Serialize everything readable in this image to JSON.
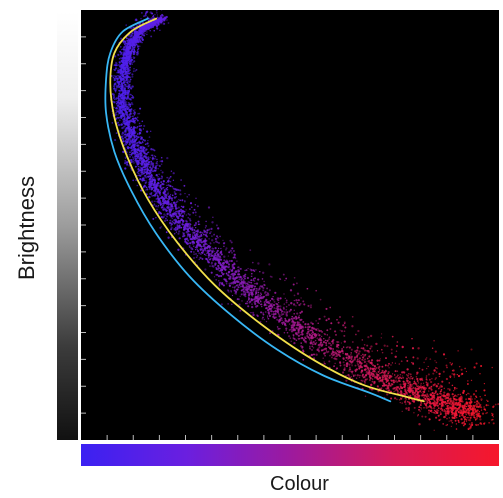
{
  "chart_data": {
    "type": "scatter",
    "title": "",
    "xlabel": "Colour",
    "ylabel": "Brightness",
    "xlim": [
      0,
      1
    ],
    "ylim": [
      0,
      1
    ],
    "grid": false,
    "legend": "none",
    "colormap_x": [
      "#3b21f2",
      "#6a1fe0",
      "#9d1a9e",
      "#d61a57",
      "#f6172b"
    ],
    "colormap_y": [
      "#ffffff",
      "#9c9c9c",
      "#111111"
    ],
    "point_cloud_ridge": [
      [
        0.2,
        0.98
      ],
      [
        0.15,
        0.96
      ],
      [
        0.12,
        0.92
      ],
      [
        0.1,
        0.86
      ],
      [
        0.1,
        0.78
      ],
      [
        0.12,
        0.7
      ],
      [
        0.16,
        0.62
      ],
      [
        0.22,
        0.53
      ],
      [
        0.3,
        0.44
      ],
      [
        0.4,
        0.35
      ],
      [
        0.52,
        0.26
      ],
      [
        0.65,
        0.18
      ],
      [
        0.78,
        0.12
      ],
      [
        0.88,
        0.08
      ],
      [
        0.95,
        0.07
      ]
    ],
    "series": [
      {
        "color": "#f2e04a",
        "values": [
          [
            0.18,
            0.98
          ],
          [
            0.12,
            0.95
          ],
          [
            0.08,
            0.9
          ],
          [
            0.07,
            0.83
          ],
          [
            0.08,
            0.75
          ],
          [
            0.11,
            0.66
          ],
          [
            0.16,
            0.56
          ],
          [
            0.23,
            0.46
          ],
          [
            0.32,
            0.36
          ],
          [
            0.43,
            0.27
          ],
          [
            0.55,
            0.19
          ],
          [
            0.67,
            0.13
          ],
          [
            0.78,
            0.1
          ],
          [
            0.82,
            0.09
          ]
        ]
      },
      {
        "color": "#38b7f5",
        "values": [
          [
            0.16,
            0.98
          ],
          [
            0.1,
            0.95
          ],
          [
            0.07,
            0.9
          ],
          [
            0.06,
            0.84
          ],
          [
            0.06,
            0.76
          ],
          [
            0.08,
            0.67
          ],
          [
            0.12,
            0.58
          ],
          [
            0.18,
            0.48
          ],
          [
            0.26,
            0.38
          ],
          [
            0.36,
            0.29
          ],
          [
            0.47,
            0.21
          ],
          [
            0.58,
            0.15
          ],
          [
            0.69,
            0.11
          ],
          [
            0.74,
            0.09
          ]
        ]
      }
    ]
  }
}
